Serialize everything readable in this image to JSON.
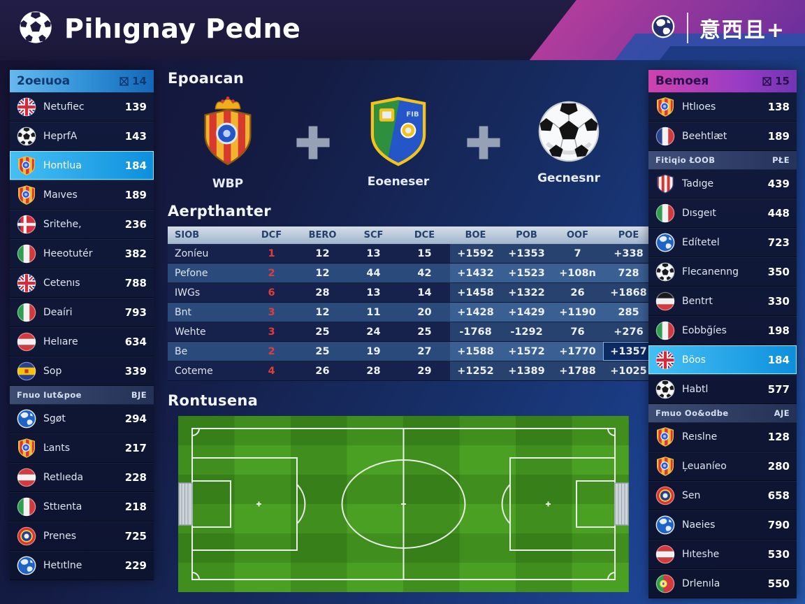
{
  "header": {
    "title": "Pihıgnay Pedne",
    "brand_text": "意西且+"
  },
  "left_sidebar": {
    "title": "2oeıuoa",
    "count": "14",
    "rows": [
      {
        "type": "item",
        "icon": "flag-uk",
        "label": "Netufiec",
        "value": "139"
      },
      {
        "type": "item",
        "icon": "soccer-ball",
        "label": "HeprfA",
        "value": "143"
      },
      {
        "type": "item",
        "icon": "crest",
        "label": "Hontlua",
        "value": "184",
        "highlighted": true
      },
      {
        "type": "item",
        "icon": "crest",
        "label": "Maıves",
        "value": "189"
      },
      {
        "type": "item",
        "icon": "flag-denmark",
        "label": "Sritehe,",
        "value": "236"
      },
      {
        "type": "item",
        "icon": "flag-italy",
        "label": "Heeotutér",
        "value": "382"
      },
      {
        "type": "item",
        "icon": "flag-uk",
        "label": "Cetenıs",
        "value": "788"
      },
      {
        "type": "item",
        "icon": "flag-italy",
        "label": "Deaíri",
        "value": "793"
      },
      {
        "type": "item",
        "icon": "flag-austria",
        "label": "Helıare",
        "value": "634"
      },
      {
        "type": "item",
        "icon": "flag-spain",
        "label": "Sop",
        "value": "339"
      },
      {
        "type": "subheader",
        "label": "Fnuo Iut&poe",
        "value": "BJE"
      },
      {
        "type": "item",
        "icon": "globe",
        "label": "Sgøt",
        "value": "294"
      },
      {
        "type": "item",
        "icon": "crest",
        "label": "Ŀants",
        "value": "217"
      },
      {
        "type": "item",
        "icon": "flag-austria",
        "label": "Retlıeda",
        "value": "228"
      },
      {
        "type": "item",
        "icon": "flag-italy",
        "label": "Sttıenta",
        "value": "218"
      },
      {
        "type": "item",
        "icon": "crest-red",
        "label": "Prenes",
        "value": "725"
      },
      {
        "type": "item",
        "icon": "globe",
        "label": "Hetıtlne",
        "value": "229"
      }
    ]
  },
  "right_sidebar": {
    "title": "Bemoeя",
    "count": "15",
    "rows": [
      {
        "type": "item",
        "icon": "crest",
        "label": "Htlıoes",
        "value": "138"
      },
      {
        "type": "item",
        "icon": "flag-france",
        "label": "Beehtlæt",
        "value": "189"
      },
      {
        "type": "subheader",
        "label": "Fitiqio ŁOOB",
        "value": "PŁE"
      },
      {
        "type": "item",
        "icon": "shield-stripes",
        "label": "Tadıge",
        "value": "439"
      },
      {
        "type": "item",
        "icon": "flag-italy",
        "label": "Dısgeıt",
        "value": "448"
      },
      {
        "type": "item",
        "icon": "globe",
        "label": "Edítetel",
        "value": "723"
      },
      {
        "type": "item",
        "icon": "soccer-ball",
        "label": "Flecanenng",
        "value": "350"
      },
      {
        "type": "item",
        "icon": "flag-germany",
        "label": "Bentrt",
        "value": "330"
      },
      {
        "type": "item",
        "icon": "flag-italy",
        "label": "Eobbğíes",
        "value": "198"
      },
      {
        "type": "item",
        "icon": "flag-uk",
        "label": "Böos",
        "value": "184",
        "highlighted": true
      },
      {
        "type": "item",
        "icon": "soccer-ball",
        "label": "Habtl",
        "value": "577"
      },
      {
        "type": "subheader",
        "label": "Fmuo Oo&odbe",
        "value": "AJE"
      },
      {
        "type": "item",
        "icon": "crest",
        "label": "Reıslne",
        "value": "128"
      },
      {
        "type": "item",
        "icon": "crest",
        "label": "Ļeuaníeo",
        "value": "280"
      },
      {
        "type": "item",
        "icon": "crest-red",
        "label": "Sen",
        "value": "658"
      },
      {
        "type": "item",
        "icon": "globe",
        "label": "Naeies",
        "value": "790"
      },
      {
        "type": "item",
        "icon": "flag-austria",
        "label": "Hıteshe",
        "value": "530"
      },
      {
        "type": "item",
        "icon": "flag-portugal",
        "label": "Drlenıla",
        "value": "550"
      }
    ]
  },
  "main": {
    "combo": {
      "title": "Epoaıcan",
      "items": [
        {
          "icon": "crest-crown",
          "label": "WBP"
        },
        {
          "icon": "shield-duo",
          "label": "Eoeneser"
        },
        {
          "icon": "soccer-ball-big",
          "label": "Gecnesnr"
        }
      ]
    },
    "table": {
      "title": "Aerpthanter",
      "columns": [
        "SIOB",
        "DCF",
        "BERO",
        "SCF",
        "DCE",
        "BOE",
        "POB",
        "OOF",
        "POE"
      ],
      "rows": [
        {
          "label": "Zoníeu",
          "rank": "1",
          "values": [
            "12",
            "13",
            "15",
            "+1592",
            "+1353",
            "7",
            "+338"
          ]
        },
        {
          "label": "Pefone",
          "rank": "2",
          "values": [
            "12",
            "44",
            "42",
            "+1432",
            "+1523",
            "+108n",
            "728"
          ]
        },
        {
          "label": "IWGs",
          "rank": "6",
          "values": [
            "28",
            "13",
            "14",
            "+1458",
            "+1322",
            "26",
            "+1868"
          ]
        },
        {
          "label": "Bnt",
          "rank": "3",
          "values": [
            "12",
            "11",
            "20",
            "+1428",
            "+1429",
            "+1190",
            "285"
          ]
        },
        {
          "label": "Wehte",
          "rank": "3",
          "values": [
            "25",
            "24",
            "25",
            "-1768",
            "-1292",
            "76",
            "+276"
          ]
        },
        {
          "label": "Be",
          "rank": "2",
          "values": [
            "25",
            "19",
            "27",
            "+1588",
            "+1572",
            "+1770",
            "+1357"
          ]
        },
        {
          "label": "Coteme",
          "rank": "4",
          "values": [
            "26",
            "28",
            "29",
            "+1252",
            "+1389",
            "+1788",
            "+1025"
          ]
        }
      ],
      "highlight_cell": {
        "row": 5,
        "col": 8
      }
    },
    "pitch": {
      "title": "Rontusena"
    }
  }
}
